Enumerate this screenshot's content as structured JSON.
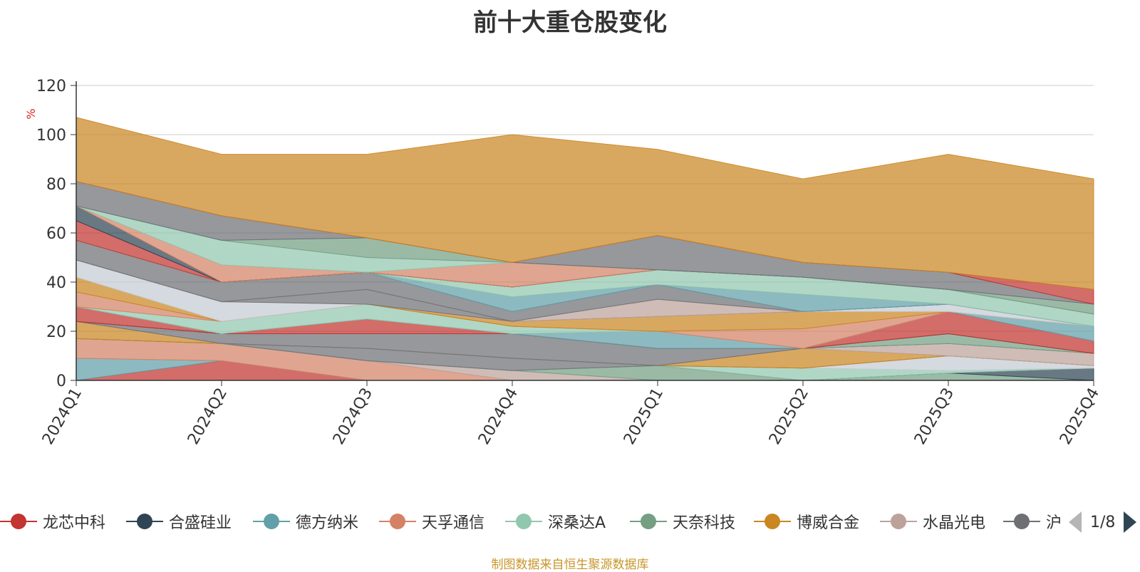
{
  "chart_data": {
    "type": "area",
    "title": "前十大重仓股变化",
    "ylabel": "%",
    "ylim": [
      0,
      120
    ],
    "yticks": [
      0,
      20,
      40,
      60,
      80,
      100,
      120
    ],
    "categories": [
      "2024Q1",
      "2024Q2",
      "2024Q3",
      "2024Q4",
      "2025Q1",
      "2025Q2",
      "2025Q3",
      "2025Q4"
    ],
    "source_note": "制图数据来自恒生聚源数据库",
    "pager": "1/8",
    "legend": [
      {
        "name": "龙芯中科",
        "color": "#c23531"
      },
      {
        "name": "合盛硅业",
        "color": "#2f4554"
      },
      {
        "name": "德方纳米",
        "color": "#61a0a8"
      },
      {
        "name": "天孚通信",
        "color": "#d48265"
      },
      {
        "name": "深桑达A",
        "color": "#91c7ae"
      },
      {
        "name": "天奈科技",
        "color": "#749f83"
      },
      {
        "name": "博威合金",
        "color": "#ca8622"
      },
      {
        "name": "水晶光电",
        "color": "#bda29a"
      },
      {
        "name": "沪",
        "color": "#6e7074"
      }
    ],
    "layers": [
      {
        "color": "#c23531",
        "values": [
          0,
          8,
          0,
          0,
          0,
          0,
          0,
          0
        ]
      },
      {
        "color": "#61a0a8",
        "values": [
          9,
          0,
          0,
          0,
          0,
          0,
          0,
          0
        ]
      },
      {
        "color": "#d48265",
        "values": [
          8,
          7,
          8,
          0,
          0,
          0,
          0,
          0
        ]
      },
      {
        "color": "#bda29a",
        "values": [
          0,
          0,
          0,
          4,
          0,
          0,
          0,
          0
        ]
      },
      {
        "color": "#749f83",
        "values": [
          0,
          0,
          0,
          0,
          6,
          0,
          3,
          0
        ]
      },
      {
        "color": "#2f4554",
        "values": [
          0,
          0,
          0,
          0,
          0,
          0,
          0,
          5
        ]
      },
      {
        "color": "#91c7ae",
        "values": [
          0,
          0,
          0,
          0,
          0,
          5,
          1,
          0
        ]
      },
      {
        "color": "#c4ccd3",
        "values": [
          0,
          0,
          0,
          0,
          0,
          0,
          6,
          1
        ]
      },
      {
        "color": "#6e7074",
        "values": [
          0,
          0,
          5,
          5,
          0,
          0,
          0,
          0
        ]
      },
      {
        "color": "#ca8622",
        "values": [
          7,
          0,
          0,
          0,
          0,
          8,
          0,
          0
        ]
      },
      {
        "color": "#bda29a",
        "values": [
          0,
          0,
          0,
          0,
          0,
          0,
          5,
          5
        ]
      },
      {
        "color": "#6e7074",
        "values": [
          0,
          4,
          6,
          10,
          7,
          0,
          0,
          0
        ]
      },
      {
        "color": "#749f83",
        "values": [
          0,
          0,
          0,
          0,
          0,
          0,
          4,
          0
        ]
      },
      {
        "color": "#2f4554",
        "values": [
          0,
          0,
          0,
          0,
          0,
          0,
          0,
          0
        ]
      },
      {
        "color": "#c23531",
        "values": [
          6,
          0,
          6,
          0,
          0,
          0,
          9,
          5
        ]
      },
      {
        "color": "#61a0a8",
        "values": [
          0,
          0,
          0,
          0,
          7,
          0,
          0,
          6
        ]
      },
      {
        "color": "#91c7ae",
        "values": [
          0,
          5,
          6,
          3,
          0,
          0,
          0,
          0
        ]
      },
      {
        "color": "#d48265",
        "values": [
          6,
          0,
          0,
          0,
          0,
          8,
          0,
          0
        ]
      },
      {
        "color": "#ca8622",
        "values": [
          6,
          0,
          0,
          2,
          6,
          7,
          0,
          0
        ]
      },
      {
        "color": "#c4ccd3",
        "values": [
          7,
          8,
          0,
          0,
          0,
          0,
          3,
          0
        ]
      },
      {
        "color": "#6e7074",
        "values": [
          0,
          0,
          6,
          0,
          0,
          0,
          0,
          0
        ]
      },
      {
        "color": "#bda29a",
        "values": [
          0,
          0,
          0,
          0,
          7,
          0,
          0,
          0
        ]
      },
      {
        "color": "#6e7074",
        "values": [
          8,
          8,
          7,
          4,
          6,
          0,
          0,
          0
        ]
      },
      {
        "color": "#61a0a8",
        "values": [
          0,
          0,
          0,
          6,
          0,
          7,
          0,
          0
        ]
      },
      {
        "color": "#91c7ae",
        "values": [
          0,
          0,
          0,
          4,
          6,
          7,
          6,
          5
        ]
      },
      {
        "color": "#c23531",
        "values": [
          8,
          0,
          0,
          0,
          0,
          0,
          0,
          0
        ]
      },
      {
        "color": "#2f4554",
        "values": [
          6,
          0,
          0,
          0,
          0,
          0,
          0,
          0
        ]
      },
      {
        "color": "#d48265",
        "values": [
          0,
          7,
          0,
          10,
          0,
          0,
          0,
          0
        ]
      },
      {
        "color": "#91c7ae",
        "values": [
          0,
          10,
          6,
          0,
          0,
          0,
          0,
          0
        ]
      },
      {
        "color": "#749f83",
        "values": [
          0,
          0,
          8,
          0,
          0,
          0,
          0,
          4
        ]
      },
      {
        "color": "#6e7074",
        "values": [
          10,
          10,
          0,
          0,
          14,
          6,
          7,
          0
        ]
      },
      {
        "color": "#c23531",
        "values": [
          0,
          0,
          0,
          0,
          0,
          0,
          0,
          6
        ]
      },
      {
        "color": "#ca8622",
        "values": [
          26,
          25,
          34,
          52,
          35,
          34,
          48,
          45
        ]
      }
    ]
  }
}
